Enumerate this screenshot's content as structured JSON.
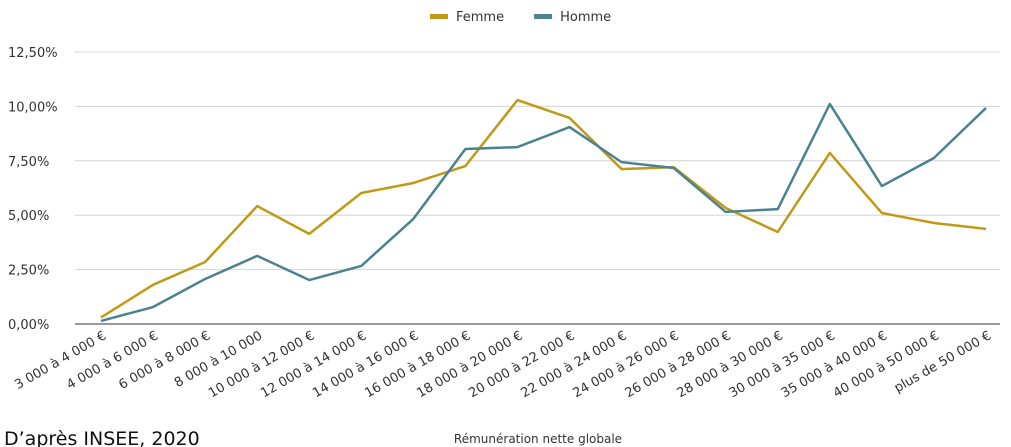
{
  "chart_data": {
    "type": "line",
    "categories": [
      "3 000 à 4 000 €",
      "4 000 à 6 000 €",
      "6 000 à 8 000 €",
      "8 000 à 10 000",
      "10 000 à 12 000 €",
      "12 000 à 14 000 €",
      "14 000 à 16 000 €",
      "16 000 à 18 000 €",
      "18 000 à 20 000 €",
      "20 000 à 22 000 €",
      "22 000 à 24 000 €",
      "24 000 à 26 000 €",
      "26 000 à 28 000 €",
      "28 000 à 30 000 €",
      "30 000 à 35 000 €",
      "35 000 à 40 000 €",
      "40 000 à 50 000 €",
      "plus de 50 000 €"
    ],
    "series": [
      {
        "name": "Femme",
        "color": "#c09a15",
        "values": [
          0.3,
          1.8,
          2.85,
          5.42,
          4.14,
          6.02,
          6.48,
          7.26,
          10.29,
          9.47,
          7.12,
          7.21,
          5.33,
          4.23,
          7.86,
          5.1,
          4.64,
          4.37
        ]
      },
      {
        "name": "Homme",
        "color": "#4a8290",
        "values": [
          0.14,
          0.78,
          2.07,
          3.13,
          2.02,
          2.67,
          4.83,
          8.04,
          8.13,
          9.05,
          7.44,
          7.17,
          5.15,
          5.28,
          10.11,
          6.34,
          7.63,
          9.93
        ]
      }
    ],
    "ylim": [
      0,
      12.5
    ],
    "yticks": [
      {
        "value": 0,
        "label": "0,00%"
      },
      {
        "value": 2.5,
        "label": "2,50%"
      },
      {
        "value": 5,
        "label": "5,00%"
      },
      {
        "value": 7.5,
        "label": "7,50%"
      },
      {
        "value": 10,
        "label": "10,00%"
      },
      {
        "value": 12.5,
        "label": "12,50%"
      }
    ],
    "grid": true,
    "legend": "top",
    "xlabel": "Rémunération nette globale",
    "source": "D’après INSEE, 2020"
  }
}
